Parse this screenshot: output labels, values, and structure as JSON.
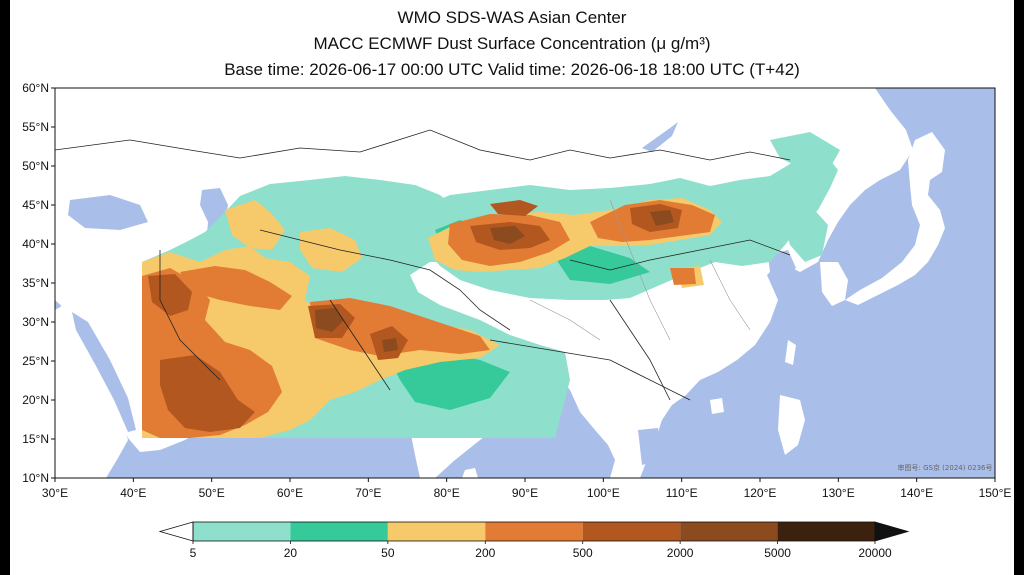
{
  "title": {
    "line1": "WMO SDS-WAS Asian Center",
    "line2": "MACC ECMWF Dust Surface Concentration (μ g/m³)",
    "line3": "Base time: 2026-06-17 00:00 UTC Valid time: 2026-06-18 18:00 UTC (T+42)"
  },
  "map": {
    "lon_range": [
      30,
      150
    ],
    "lat_range": [
      10,
      60
    ],
    "lat_ticks": [
      "60°N",
      "55°N",
      "50°N",
      "45°N",
      "40°N",
      "35°N",
      "30°N",
      "25°N",
      "20°N",
      "15°N",
      "10°N"
    ],
    "lon_ticks": [
      "30°E",
      "40°E",
      "50°E",
      "60°E",
      "70°E",
      "80°E",
      "90°E",
      "100°E",
      "110°E",
      "120°E",
      "130°E",
      "140°E",
      "150°E"
    ],
    "ocean_color": "#a9bfe9",
    "land_color": "#ffffff",
    "watermark": "审图号: GS京 (2024) 0236号"
  },
  "colorbar": {
    "levels": [
      "5",
      "20",
      "50",
      "200",
      "500",
      "2000",
      "5000",
      "20000"
    ],
    "colors": [
      "#8ee0cc",
      "#36c99a",
      "#f6c96b",
      "#e27b34",
      "#b1571f",
      "#8c4a1f",
      "#3b210e"
    ]
  }
}
